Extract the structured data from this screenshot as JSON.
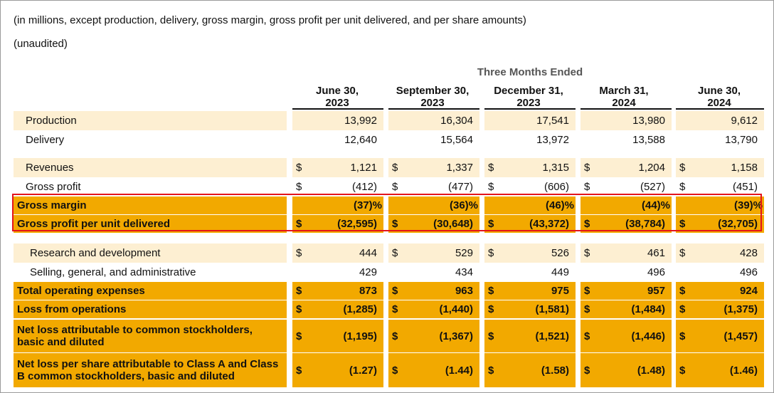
{
  "notes": {
    "scope": "(in millions, except production, delivery, gross margin, gross profit per unit delivered, and per share amounts)",
    "status": "(unaudited)"
  },
  "header": {
    "group": "Three Months Ended",
    "columns": [
      {
        "line1": "June 30,",
        "line2": "2023"
      },
      {
        "line1": "September 30,",
        "line2": "2023"
      },
      {
        "line1": "December 31,",
        "line2": "2023"
      },
      {
        "line1": "March 31,",
        "line2": "2024"
      },
      {
        "line1": "June 30,",
        "line2": "2024"
      }
    ]
  },
  "rows": [
    {
      "label": "Production",
      "values": [
        "13,992",
        "16,304",
        "17,541",
        "13,980",
        "9,612"
      ],
      "dollar": [
        "",
        "",
        "",
        "",
        ""
      ]
    },
    {
      "label": "Delivery",
      "values": [
        "12,640",
        "15,564",
        "13,972",
        "13,588",
        "13,790"
      ],
      "dollar": [
        "",
        "",
        "",
        "",
        ""
      ]
    },
    {
      "label": "Revenues",
      "values": [
        "1,121",
        "1,337",
        "1,315",
        "1,204",
        "1,158"
      ],
      "dollar": [
        "$",
        "$",
        "$",
        "$",
        "$"
      ]
    },
    {
      "label": "Gross profit",
      "values": [
        "(412)",
        "(477)",
        "(606)",
        "(527)",
        "(451)"
      ],
      "dollar": [
        "$",
        "$",
        "$",
        "$",
        "$"
      ]
    },
    {
      "label": "Gross margin",
      "values": [
        "(37)%",
        "(36)%",
        "(46)%",
        "(44)%",
        "(39)%"
      ],
      "dollar": [
        "",
        "",
        "",
        "",
        ""
      ]
    },
    {
      "label": "Gross profit per unit delivered",
      "values": [
        "(32,595)",
        "(30,648)",
        "(43,372)",
        "(38,784)",
        "(32,705)"
      ],
      "dollar": [
        "$",
        "$",
        "$",
        "$",
        "$"
      ]
    },
    {
      "label": "Research and development",
      "values": [
        "444",
        "529",
        "526",
        "461",
        "428"
      ],
      "dollar": [
        "$",
        "$",
        "$",
        "$",
        "$"
      ]
    },
    {
      "label": "Selling, general, and administrative",
      "values": [
        "429",
        "434",
        "449",
        "496",
        "496"
      ],
      "dollar": [
        "",
        "",
        "",
        "",
        ""
      ]
    },
    {
      "label": "Total operating expenses",
      "values": [
        "873",
        "963",
        "975",
        "957",
        "924"
      ],
      "dollar": [
        "$",
        "$",
        "$",
        "$",
        "$"
      ]
    },
    {
      "label": "Loss from operations",
      "values": [
        "(1,285)",
        "(1,440)",
        "(1,581)",
        "(1,484)",
        "(1,375)"
      ],
      "dollar": [
        "$",
        "$",
        "$",
        "$",
        "$"
      ]
    },
    {
      "label": "Net loss attributable to common stockholders, basic and diluted",
      "values": [
        "(1,195)",
        "(1,367)",
        "(1,521)",
        "(1,446)",
        "(1,457)"
      ],
      "dollar": [
        "$",
        "$",
        "$",
        "$",
        "$"
      ]
    },
    {
      "label": "Net loss per share attributable to Class A and Class B common stockholders, basic and diluted",
      "values": [
        "(1.27)",
        "(1.44)",
        "(1.58)",
        "(1.48)",
        "(1.46)"
      ],
      "dollar": [
        "$",
        "$",
        "$",
        "$",
        "$"
      ]
    }
  ],
  "colors": {
    "beige": "#fdefd2",
    "gold": "#f2a900",
    "highlight_border": "#e3141b"
  }
}
